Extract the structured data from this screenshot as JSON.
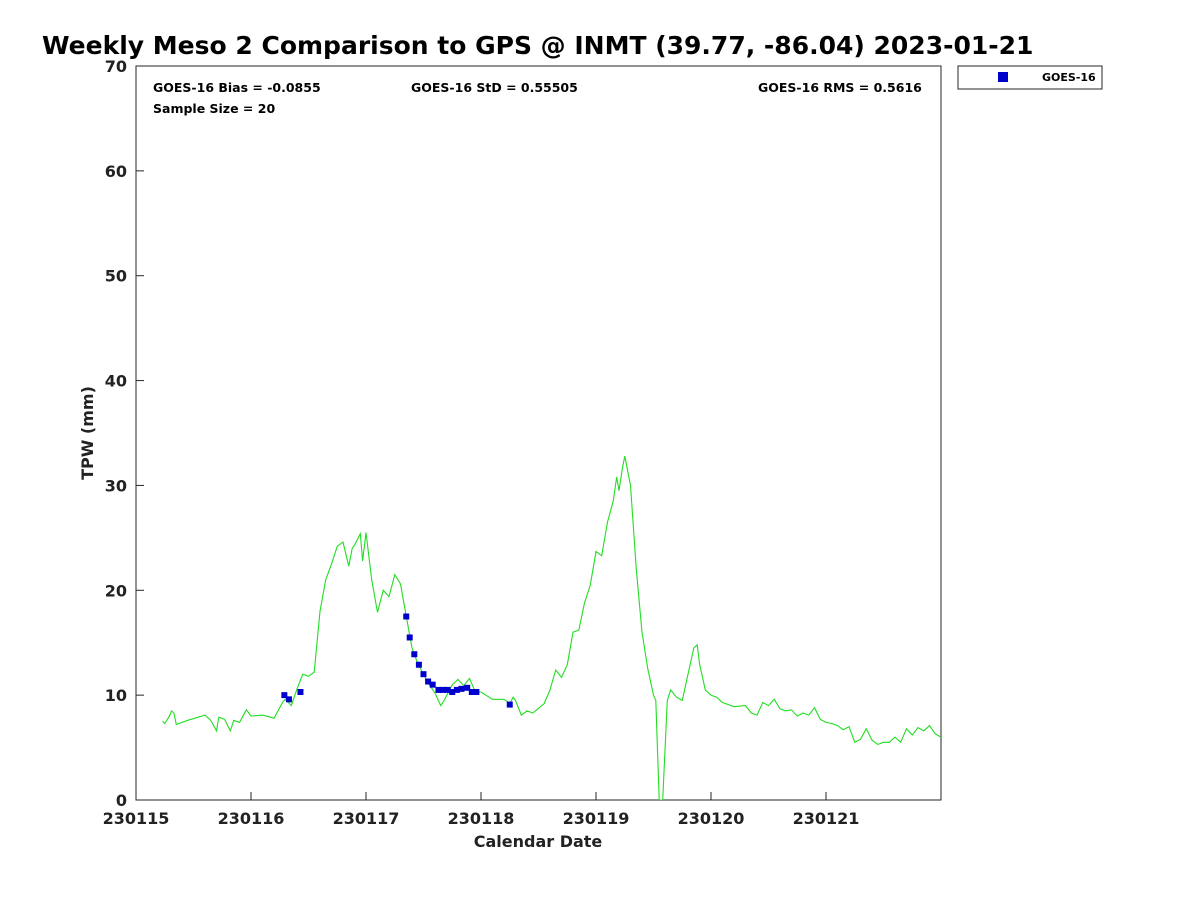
{
  "chart_data": {
    "type": "scatter",
    "title": "Weekly Meso 2 Comparison to GPS @ INMT (39.77, -86.04) 2023-01-21",
    "xlabel": "Calendar Date",
    "ylabel": "TPW (mm)",
    "xlim": [
      230115,
      230122
    ],
    "ylim": [
      0,
      70
    ],
    "x_tick_labels": [
      "230115",
      "230116",
      "230117",
      "230118",
      "230119",
      "230120",
      "230121"
    ],
    "y_ticks": [
      0,
      10,
      20,
      30,
      40,
      50,
      60,
      70
    ],
    "grid": false,
    "legend_placement": "top-right, outside plot",
    "stats": {
      "bias": "GOES-16 Bias = -0.0855",
      "std": "GOES-16 StD = 0.55505",
      "rms": "GOES-16 RMS = 0.5616",
      "sample": "Sample Size = 20"
    },
    "series": [
      {
        "name": "GOES-16",
        "kind": "marker",
        "color": "#0000cc",
        "marker": "square",
        "points": [
          [
            230116.29,
            10.0
          ],
          [
            230116.33,
            9.6
          ],
          [
            230116.43,
            10.3
          ],
          [
            230117.35,
            17.5
          ],
          [
            230117.38,
            15.5
          ],
          [
            230117.42,
            13.9
          ],
          [
            230117.46,
            12.9
          ],
          [
            230117.5,
            12.0
          ],
          [
            230117.54,
            11.3
          ],
          [
            230117.58,
            11.0
          ],
          [
            230117.63,
            10.5
          ],
          [
            230117.67,
            10.5
          ],
          [
            230117.71,
            10.5
          ],
          [
            230117.75,
            10.3
          ],
          [
            230117.79,
            10.5
          ],
          [
            230117.83,
            10.6
          ],
          [
            230117.88,
            10.7
          ],
          [
            230117.92,
            10.3
          ],
          [
            230117.96,
            10.3
          ],
          [
            230118.25,
            9.1
          ]
        ]
      },
      {
        "kind": "line",
        "color": "#22dd22",
        "points": [
          [
            230115.23,
            7.5
          ],
          [
            230115.25,
            7.3
          ],
          [
            230115.29,
            8.0
          ],
          [
            230115.31,
            8.5
          ],
          [
            230115.33,
            8.3
          ],
          [
            230115.35,
            7.2
          ],
          [
            230115.45,
            7.6
          ],
          [
            230115.6,
            8.1
          ],
          [
            230115.65,
            7.6
          ],
          [
            230115.7,
            6.6
          ],
          [
            230115.72,
            7.9
          ],
          [
            230115.77,
            7.7
          ],
          [
            230115.82,
            6.6
          ],
          [
            230115.85,
            7.6
          ],
          [
            230115.9,
            7.4
          ],
          [
            230115.96,
            8.6
          ],
          [
            230116.0,
            8.0
          ],
          [
            230116.1,
            8.1
          ],
          [
            230116.2,
            7.8
          ],
          [
            230116.28,
            9.4
          ],
          [
            230116.3,
            9.6
          ],
          [
            230116.35,
            9.0
          ],
          [
            230116.4,
            10.6
          ],
          [
            230116.45,
            12.0
          ],
          [
            230116.5,
            11.8
          ],
          [
            230116.55,
            12.2
          ],
          [
            230116.6,
            18.0
          ],
          [
            230116.65,
            21.0
          ],
          [
            230116.7,
            22.5
          ],
          [
            230116.75,
            24.2
          ],
          [
            230116.8,
            24.6
          ],
          [
            230116.85,
            22.3
          ],
          [
            230116.88,
            24.0
          ],
          [
            230116.9,
            24.3
          ],
          [
            230116.95,
            25.4
          ],
          [
            230116.97,
            22.8
          ],
          [
            230117.0,
            25.5
          ],
          [
            230117.05,
            21.0
          ],
          [
            230117.1,
            17.9
          ],
          [
            230117.15,
            20.0
          ],
          [
            230117.2,
            19.4
          ],
          [
            230117.25,
            21.5
          ],
          [
            230117.3,
            20.6
          ],
          [
            230117.35,
            17.5
          ],
          [
            230117.4,
            14.5
          ],
          [
            230117.45,
            13.0
          ],
          [
            230117.5,
            12.0
          ],
          [
            230117.55,
            11.0
          ],
          [
            230117.6,
            10.2
          ],
          [
            230117.65,
            9.0
          ],
          [
            230117.68,
            9.5
          ],
          [
            230117.75,
            11.0
          ],
          [
            230117.8,
            11.5
          ],
          [
            230117.85,
            10.9
          ],
          [
            230117.9,
            11.6
          ],
          [
            230117.95,
            10.3
          ],
          [
            230118.0,
            10.3
          ],
          [
            230118.1,
            9.6
          ],
          [
            230118.2,
            9.6
          ],
          [
            230118.25,
            9.2
          ],
          [
            230118.28,
            9.8
          ],
          [
            230118.3,
            9.5
          ],
          [
            230118.35,
            8.1
          ],
          [
            230118.4,
            8.5
          ],
          [
            230118.45,
            8.3
          ],
          [
            230118.55,
            9.2
          ],
          [
            230118.6,
            10.5
          ],
          [
            230118.65,
            12.4
          ],
          [
            230118.7,
            11.7
          ],
          [
            230118.75,
            12.9
          ],
          [
            230118.8,
            16.0
          ],
          [
            230118.85,
            16.2
          ],
          [
            230118.9,
            18.8
          ],
          [
            230118.95,
            20.5
          ],
          [
            230119.0,
            23.7
          ],
          [
            230119.05,
            23.3
          ],
          [
            230119.1,
            26.5
          ],
          [
            230119.15,
            28.5
          ],
          [
            230119.18,
            30.8
          ],
          [
            230119.2,
            29.5
          ],
          [
            230119.23,
            31.7
          ],
          [
            230119.25,
            32.8
          ],
          [
            230119.3,
            30.0
          ],
          [
            230119.35,
            22.0
          ],
          [
            230119.4,
            16.0
          ],
          [
            230119.45,
            12.5
          ],
          [
            230119.5,
            10.0
          ],
          [
            230119.52,
            9.5
          ],
          [
            230119.55,
            0.0
          ],
          [
            230119.58,
            0.0
          ],
          [
            230119.62,
            9.5
          ],
          [
            230119.65,
            10.5
          ],
          [
            230119.7,
            9.8
          ],
          [
            230119.75,
            9.5
          ],
          [
            230119.8,
            12.0
          ],
          [
            230119.85,
            14.5
          ],
          [
            230119.88,
            14.8
          ],
          [
            230119.9,
            13.0
          ],
          [
            230119.95,
            10.5
          ],
          [
            230120.0,
            10.0
          ],
          [
            230120.05,
            9.8
          ],
          [
            230120.1,
            9.3
          ],
          [
            230120.2,
            8.9
          ],
          [
            230120.3,
            9.0
          ],
          [
            230120.35,
            8.3
          ],
          [
            230120.4,
            8.1
          ],
          [
            230120.45,
            9.3
          ],
          [
            230120.5,
            9.0
          ],
          [
            230120.55,
            9.6
          ],
          [
            230120.6,
            8.7
          ],
          [
            230120.65,
            8.5
          ],
          [
            230120.7,
            8.6
          ],
          [
            230120.75,
            8.0
          ],
          [
            230120.8,
            8.3
          ],
          [
            230120.85,
            8.1
          ],
          [
            230120.9,
            8.8
          ],
          [
            230120.95,
            7.7
          ],
          [
            230121.0,
            7.4
          ],
          [
            230121.05,
            7.3
          ],
          [
            230121.1,
            7.1
          ],
          [
            230121.15,
            6.7
          ],
          [
            230121.2,
            7.0
          ],
          [
            230121.25,
            5.5
          ],
          [
            230121.3,
            5.8
          ],
          [
            230121.35,
            6.8
          ],
          [
            230121.4,
            5.7
          ],
          [
            230121.45,
            5.3
          ],
          [
            230121.5,
            5.5
          ],
          [
            230121.55,
            5.5
          ],
          [
            230121.6,
            6.0
          ],
          [
            230121.65,
            5.5
          ],
          [
            230121.7,
            6.8
          ],
          [
            230121.75,
            6.2
          ],
          [
            230121.8,
            6.9
          ],
          [
            230121.85,
            6.6
          ],
          [
            230121.9,
            7.1
          ],
          [
            230121.95,
            6.3
          ],
          [
            230122.0,
            6.0
          ]
        ]
      }
    ]
  }
}
